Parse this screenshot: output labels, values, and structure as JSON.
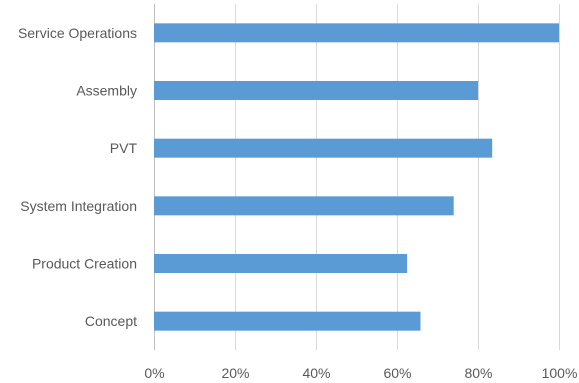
{
  "chart_data": {
    "type": "bar",
    "orientation": "horizontal",
    "categories": [
      "Service Operations",
      "Assembly",
      "PVT",
      "System Integration",
      "Product Creation",
      "Concept"
    ],
    "values": [
      100,
      80,
      83.5,
      74,
      62.5,
      65.8
    ],
    "xlim": [
      0,
      100
    ],
    "x_ticks": [
      "0%",
      "20%",
      "40%",
      "60%",
      "80%",
      "100%"
    ],
    "title": "",
    "xlabel": "",
    "ylabel": "",
    "grid": "vertical",
    "legend": "none",
    "bar_color": "#5b9bd5"
  }
}
